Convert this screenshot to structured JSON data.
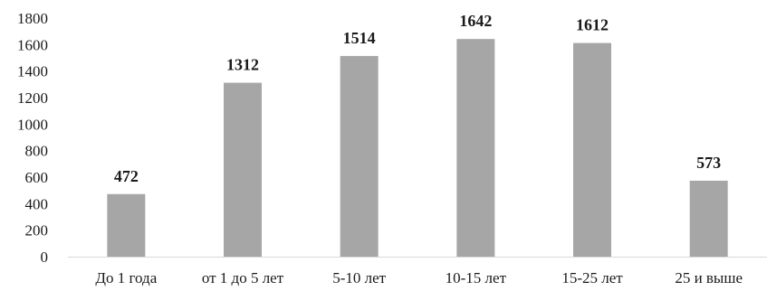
{
  "chart_data": {
    "type": "bar",
    "title": "",
    "xlabel": "",
    "ylabel": "",
    "categories": [
      "До 1 года",
      "от 1 до 5 лет",
      "5-10 лет",
      "10-15 лет",
      "15-25 лет",
      "25 и выше"
    ],
    "values": [
      472,
      1312,
      1514,
      1642,
      1612,
      573
    ],
    "data_labels": [
      "472",
      "1312",
      "1514",
      "1642",
      "1612",
      "573"
    ],
    "ylim": [
      0,
      1800
    ],
    "yticks": [
      0,
      200,
      400,
      600,
      800,
      1000,
      1200,
      1400,
      1600,
      1800
    ],
    "grid": false,
    "legend": "none",
    "bar_color": "#a6a6a6",
    "axis_color": "#d9d9d9"
  }
}
